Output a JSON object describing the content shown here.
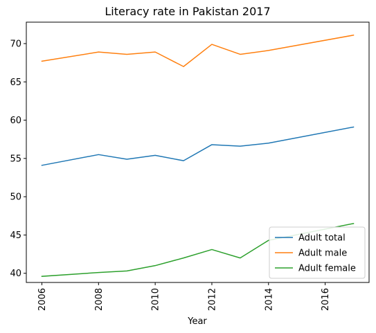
{
  "chart_data": {
    "type": "line",
    "title": "Literacy rate in Pakistan 2017",
    "xlabel": "Year",
    "ylabel": "",
    "x": [
      2006,
      2008,
      2009,
      2010,
      2011,
      2012,
      2013,
      2014,
      2017
    ],
    "xlim": [
      2005.45,
      2017.55
    ],
    "ylim": [
      38.8,
      72.8
    ],
    "xticks": [
      2006,
      2008,
      2010,
      2012,
      2014,
      2016
    ],
    "yticks": [
      40,
      45,
      50,
      55,
      60,
      65,
      70
    ],
    "xtick_rotation": "vertical",
    "grid": false,
    "legend_position": "lower-right",
    "series": [
      {
        "name": "Adult total",
        "color": "#1f77b4",
        "values": [
          54.1,
          55.5,
          54.9,
          55.4,
          54.7,
          56.8,
          56.6,
          57.0,
          59.1
        ]
      },
      {
        "name": "Adult male",
        "color": "#ff7f0e",
        "values": [
          67.7,
          68.9,
          68.6,
          68.9,
          67.0,
          69.9,
          68.6,
          69.1,
          71.1
        ]
      },
      {
        "name": "Adult female",
        "color": "#2ca02c",
        "values": [
          39.6,
          40.1,
          40.3,
          41.0,
          42.0,
          43.1,
          42.0,
          44.3,
          46.5
        ]
      }
    ]
  }
}
